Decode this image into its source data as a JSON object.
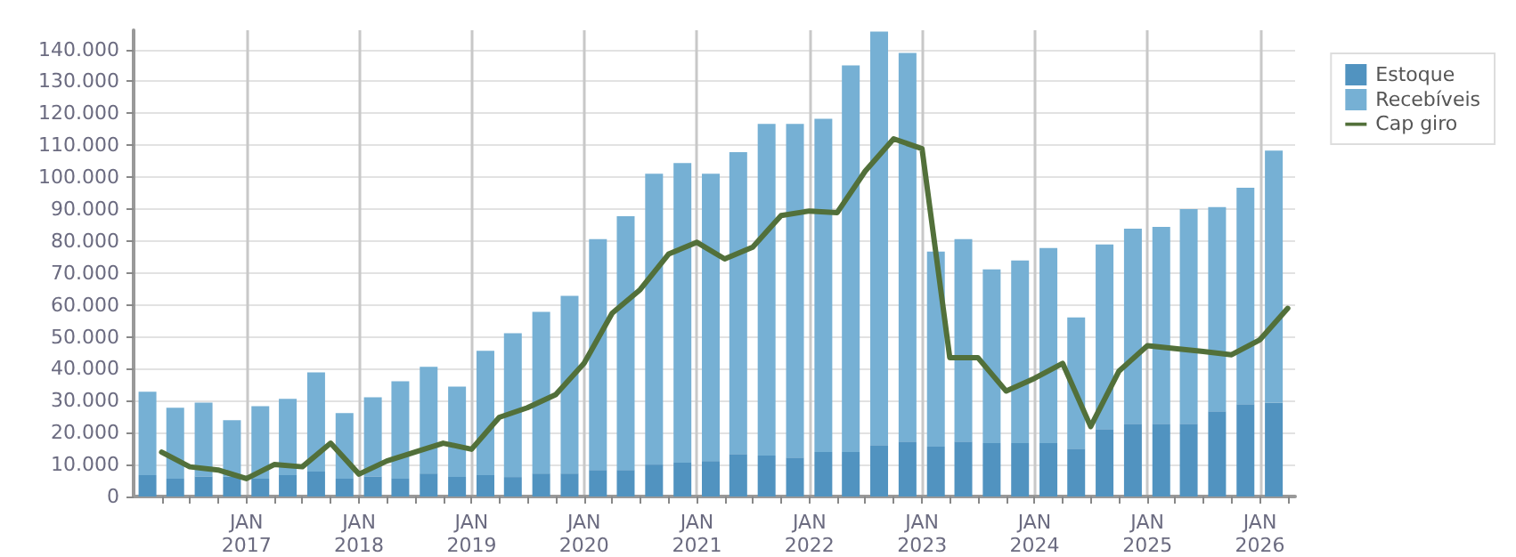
{
  "chart_data": {
    "type": "bar",
    "stacked": true,
    "legend": "top right",
    "grid": true,
    "marker": "none",
    "xlim": [
      "2016-01-01",
      "2026-04-25"
    ],
    "xticks": [
      {
        "value": "2016-04-01",
        "label": null
      },
      {
        "value": "2016-07-01",
        "label": null
      },
      {
        "value": "2016-10-01",
        "label": null
      },
      {
        "value": "2017-01-01",
        "label": "JAN\n2017"
      },
      {
        "value": "2017-04-01",
        "label": null
      },
      {
        "value": "2017-07-01",
        "label": null
      },
      {
        "value": "2017-10-01",
        "label": null
      },
      {
        "value": "2018-01-01",
        "label": "JAN\n2018"
      },
      {
        "value": "2018-04-01",
        "label": null
      },
      {
        "value": "2018-07-01",
        "label": null
      },
      {
        "value": "2018-10-01",
        "label": null
      },
      {
        "value": "2019-01-01",
        "label": "JAN\n2019"
      },
      {
        "value": "2019-04-01",
        "label": null
      },
      {
        "value": "2019-07-01",
        "label": null
      },
      {
        "value": "2019-10-01",
        "label": null
      },
      {
        "value": "2020-01-01",
        "label": "JAN\n2020"
      },
      {
        "value": "2020-04-01",
        "label": null
      },
      {
        "value": "2020-07-01",
        "label": null
      },
      {
        "value": "2020-10-01",
        "label": null
      },
      {
        "value": "2021-01-01",
        "label": "JAN\n2021"
      },
      {
        "value": "2021-04-01",
        "label": null
      },
      {
        "value": "2021-07-01",
        "label": null
      },
      {
        "value": "2021-10-01",
        "label": null
      },
      {
        "value": "2022-01-01",
        "label": "JAN\n2022"
      },
      {
        "value": "2022-04-01",
        "label": null
      },
      {
        "value": "2022-07-01",
        "label": null
      },
      {
        "value": "2022-10-01",
        "label": null
      },
      {
        "value": "2023-01-01",
        "label": "JAN\n2023"
      },
      {
        "value": "2023-04-01",
        "label": null
      },
      {
        "value": "2023-07-01",
        "label": null
      },
      {
        "value": "2023-10-01",
        "label": null
      },
      {
        "value": "2024-01-01",
        "label": "JAN\n2024"
      },
      {
        "value": "2024-04-01",
        "label": null
      },
      {
        "value": "2024-07-01",
        "label": null
      },
      {
        "value": "2024-10-01",
        "label": null
      },
      {
        "value": "2025-01-01",
        "label": "JAN\n2025"
      },
      {
        "value": "2025-04-01",
        "label": null
      },
      {
        "value": "2025-07-01",
        "label": null
      },
      {
        "value": "2025-10-01",
        "label": null
      },
      {
        "value": "2026-01-01",
        "label": "JAN\n2026"
      },
      {
        "value": "2026-04-01",
        "label": null
      }
    ],
    "ylim": [
      0,
      146000
    ],
    "yticks": [
      0,
      {
        "value": 10000,
        "label": "10.000"
      },
      {
        "value": 20000,
        "label": "20.000"
      },
      {
        "value": 30000,
        "label": "30.000"
      },
      {
        "value": 40000,
        "label": "40.000"
      },
      {
        "value": 50000,
        "label": "50.000"
      },
      {
        "value": 60000,
        "label": "60.000"
      },
      {
        "value": 70000,
        "label": "70.000"
      },
      {
        "value": 80000,
        "label": "80.000"
      },
      {
        "value": 90000,
        "label": "90.000"
      },
      {
        "value": 100000,
        "label": "100.000"
      },
      {
        "value": 110000,
        "label": "110.000"
      },
      {
        "value": 120000,
        "label": "120.000"
      },
      {
        "value": 130000,
        "label": "130.000"
      },
      {
        "value": 140000,
        "label": "140.000"
      }
    ],
    "series": [
      {
        "name": "Estoque",
        "color": "#5193c0",
        "x": [
          "2016-02-15",
          "2016-05-15",
          "2016-08-15",
          "2016-11-15",
          "2017-02-15",
          "2017-05-15",
          "2017-08-15",
          "2017-11-15",
          "2018-02-15",
          "2018-05-15",
          "2018-08-15",
          "2018-11-15",
          "2019-02-15",
          "2019-05-15",
          "2019-08-15",
          "2019-11-15",
          "2020-02-15",
          "2020-05-15",
          "2020-08-15",
          "2020-11-15",
          "2021-02-15",
          "2021-05-15",
          "2021-08-15",
          "2021-11-15",
          "2022-02-15",
          "2022-05-15",
          "2022-08-15",
          "2022-11-15",
          "2023-02-15",
          "2023-05-15",
          "2023-08-15",
          "2023-11-15",
          "2024-02-15",
          "2024-05-15",
          "2024-08-15",
          "2024-11-15",
          "2025-02-15",
          "2025-05-15",
          "2025-08-15",
          "2025-11-15",
          "2026-02-15"
        ],
        "values": [
          6700,
          5600,
          6300,
          6300,
          5600,
          6700,
          7800,
          5600,
          6300,
          5600,
          7200,
          6100,
          6700,
          6100,
          7200,
          7200,
          8300,
          8300,
          10000,
          10600,
          11100,
          13300,
          12800,
          12200,
          13900,
          13900,
          16100,
          17200,
          15600,
          17200,
          16700,
          16700,
          16700,
          15000,
          21100,
          22800,
          22800,
          22800,
          26700,
          28900,
          29400
        ]
      },
      {
        "name": "Recebíveis",
        "color": "#76b0d4",
        "x": [
          "2016-02-15",
          "2016-05-15",
          "2016-08-15",
          "2016-11-15",
          "2017-02-15",
          "2017-05-15",
          "2017-08-15",
          "2017-11-15",
          "2018-02-15",
          "2018-05-15",
          "2018-08-15",
          "2018-11-15",
          "2019-02-15",
          "2019-05-15",
          "2019-08-15",
          "2019-11-15",
          "2020-02-15",
          "2020-05-15",
          "2020-08-15",
          "2020-11-15",
          "2021-02-15",
          "2021-05-15",
          "2021-08-15",
          "2021-11-15",
          "2022-02-15",
          "2022-05-15",
          "2022-08-15",
          "2022-11-15",
          "2023-02-15",
          "2023-05-15",
          "2023-08-15",
          "2023-11-15",
          "2024-02-15",
          "2024-05-15",
          "2024-08-15",
          "2024-11-15",
          "2025-02-15",
          "2025-05-15",
          "2025-08-15",
          "2025-11-15",
          "2026-02-15"
        ],
        "values": [
          26100,
          22200,
          23100,
          17600,
          22700,
          23900,
          31100,
          20500,
          24800,
          30500,
          33400,
          28300,
          38900,
          45000,
          50600,
          55600,
          72300,
          79500,
          91100,
          93800,
          90000,
          94500,
          103900,
          104500,
          104400,
          121100,
          129500,
          121700,
          61100,
          63400,
          54400,
          57200,
          61100,
          41100,
          57800,
          61100,
          61600,
          67200,
          63900,
          67800,
          78900
        ]
      },
      {
        "name": "Cap giro",
        "type": "line",
        "line_style": "solid",
        "color": "#52703a",
        "x": [
          "2016-04",
          "2016-07",
          "2016-10",
          "2017-01",
          "2017-04",
          "2017-07",
          "2017-10",
          "2018-01",
          "2018-04",
          "2018-07",
          "2018-10",
          "2019-01",
          "2019-04",
          "2019-07",
          "2019-10",
          "2020-01",
          "2020-04",
          "2020-07",
          "2020-10",
          "2021-01",
          "2021-04",
          "2021-07",
          "2021-10",
          "2022-01",
          "2022-04",
          "2022-07",
          "2022-10",
          "2023-01",
          "2023-04",
          "2023-07",
          "2023-10",
          "2024-01",
          "2024-04",
          "2024-07",
          "2024-10",
          "2025-01",
          "2025-04",
          "2025-07",
          "2025-10",
          "2026-01",
          "2026-04"
        ],
        "values": [
          13900,
          9300,
          8300,
          5600,
          10000,
          9300,
          16700,
          7000,
          11100,
          13900,
          16700,
          14800,
          24800,
          27800,
          31900,
          41700,
          57400,
          64800,
          75900,
          79600,
          74400,
          78100,
          88000,
          89400,
          88900,
          101900,
          112000,
          108900,
          43500,
          43500,
          33000,
          37000,
          41700,
          21900,
          39300,
          47200,
          46300,
          45400,
          44400,
          49100,
          58900
        ]
      }
    ]
  }
}
